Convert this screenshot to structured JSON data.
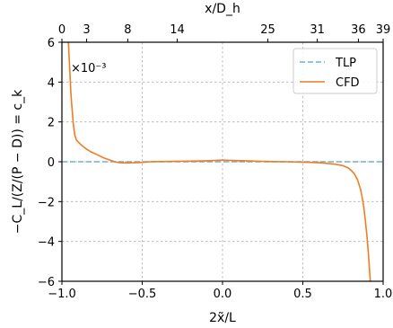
{
  "chart_data": {
    "type": "line",
    "title": "",
    "xlabel": "2x̃/L",
    "ylabel": "−C_L/(Z/(P − D)) = c_k",
    "top_xlabel": "x/D_h",
    "xlim": [
      -1.0,
      1.0
    ],
    "ylim": [
      -6,
      6
    ],
    "y_scale_label": "×10⁻³",
    "grid": true,
    "legend_position": "top-right",
    "x_ticks": [
      -1.0,
      -0.5,
      0.0,
      0.5,
      1.0
    ],
    "x_tick_labels": [
      "−1.0",
      "−0.5",
      "0.0",
      "0.5",
      "1.0"
    ],
    "y_ticks": [
      -6,
      -4,
      -2,
      0,
      2,
      4,
      6
    ],
    "y_tick_labels": [
      "−6",
      "−4",
      "−2",
      "0",
      "2",
      "4",
      "6"
    ],
    "top_ticks": [
      {
        "x": -1.0,
        "label": "0"
      },
      {
        "x": -0.846,
        "label": "3"
      },
      {
        "x": -0.59,
        "label": "8"
      },
      {
        "x": -0.282,
        "label": "14"
      },
      {
        "x": 0.282,
        "label": "25"
      },
      {
        "x": 0.59,
        "label": "31"
      },
      {
        "x": 0.846,
        "label": "36"
      },
      {
        "x": 1.0,
        "label": "39"
      }
    ],
    "series": [
      {
        "name": "TLP",
        "color": "#6fb1d8",
        "style": "dashed",
        "x": [
          -1.0,
          1.0
        ],
        "y": [
          0.0,
          0.0
        ]
      },
      {
        "name": "CFD",
        "color": "#f07d22",
        "style": "solid",
        "x": [
          -0.96,
          -0.955,
          -0.95,
          -0.945,
          -0.94,
          -0.935,
          -0.93,
          -0.925,
          -0.92,
          -0.91,
          -0.9,
          -0.88,
          -0.85,
          -0.82,
          -0.78,
          -0.74,
          -0.7,
          -0.67,
          -0.64,
          -0.6,
          -0.55,
          -0.5,
          -0.45,
          -0.4,
          -0.3,
          -0.2,
          -0.1,
          0.0,
          0.1,
          0.2,
          0.3,
          0.4,
          0.5,
          0.55,
          0.6,
          0.65,
          0.7,
          0.75,
          0.78,
          0.8,
          0.82,
          0.84,
          0.86,
          0.87,
          0.88,
          0.89,
          0.9,
          0.91,
          0.92
        ],
        "y": [
          6.0,
          5.2,
          4.4,
          3.6,
          3.0,
          2.5,
          2.0,
          1.65,
          1.35,
          1.1,
          1.0,
          0.85,
          0.65,
          0.5,
          0.35,
          0.2,
          0.08,
          0.0,
          -0.05,
          -0.06,
          -0.05,
          -0.03,
          0.0,
          0.01,
          0.02,
          0.03,
          0.05,
          0.08,
          0.06,
          0.03,
          0.01,
          0.0,
          -0.02,
          -0.03,
          -0.05,
          -0.08,
          -0.12,
          -0.2,
          -0.3,
          -0.42,
          -0.6,
          -0.9,
          -1.4,
          -1.8,
          -2.3,
          -3.0,
          -3.8,
          -4.8,
          -6.0
        ]
      }
    ]
  }
}
